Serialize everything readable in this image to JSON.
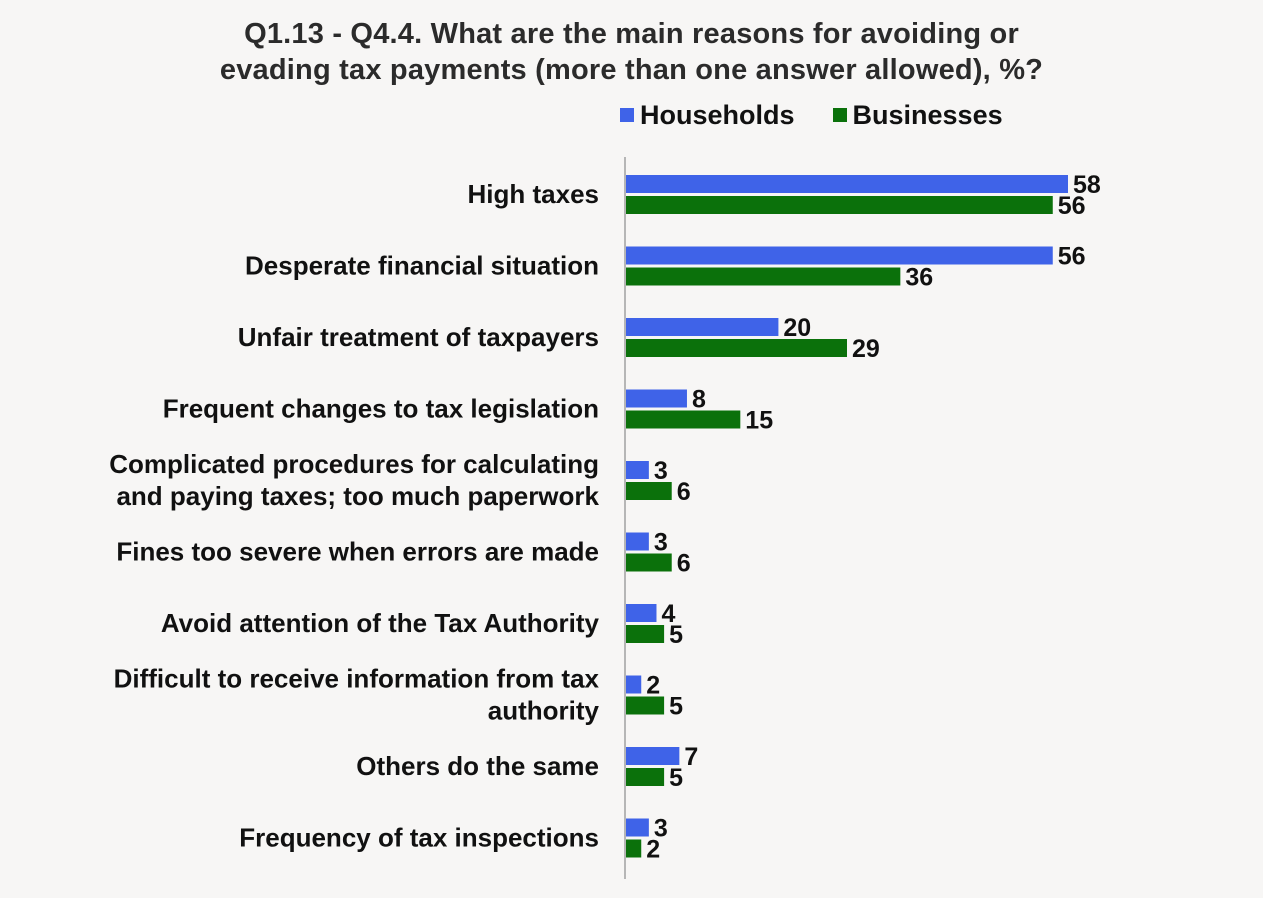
{
  "chart_data": {
    "type": "bar",
    "orientation": "horizontal",
    "title": "Q1.13 - Q4.4. What are the main reasons for avoiding or evading tax payments (more than one answer allowed), %?",
    "title_lines": [
      "Q1.13 - Q4.4. What are the main reasons for avoiding or",
      "evading tax payments (more than one answer allowed), %?"
    ],
    "legend_position": "top-right",
    "grid": false,
    "xlim": [
      0,
      60
    ],
    "categories": [
      [
        "High taxes"
      ],
      [
        "Desperate financial situation"
      ],
      [
        "Unfair treatment of taxpayers"
      ],
      [
        "Frequent changes to tax legislation"
      ],
      [
        "Complicated procedures for calculating",
        "and paying taxes; too much paperwork"
      ],
      [
        "Fines too severe when errors are made"
      ],
      [
        "Avoid attention of the Tax Authority"
      ],
      [
        "Difficult to receive information from tax",
        "authority"
      ],
      [
        "Others do the same"
      ],
      [
        "Frequency of tax inspections"
      ]
    ],
    "series": [
      {
        "name": "Households",
        "color": "#3f63e8",
        "values": [
          58,
          56,
          20,
          8,
          3,
          3,
          4,
          2,
          7,
          3
        ]
      },
      {
        "name": "Businesses",
        "color": "#0b710b",
        "values": [
          56,
          36,
          29,
          15,
          6,
          6,
          5,
          5,
          5,
          2
        ]
      }
    ]
  }
}
